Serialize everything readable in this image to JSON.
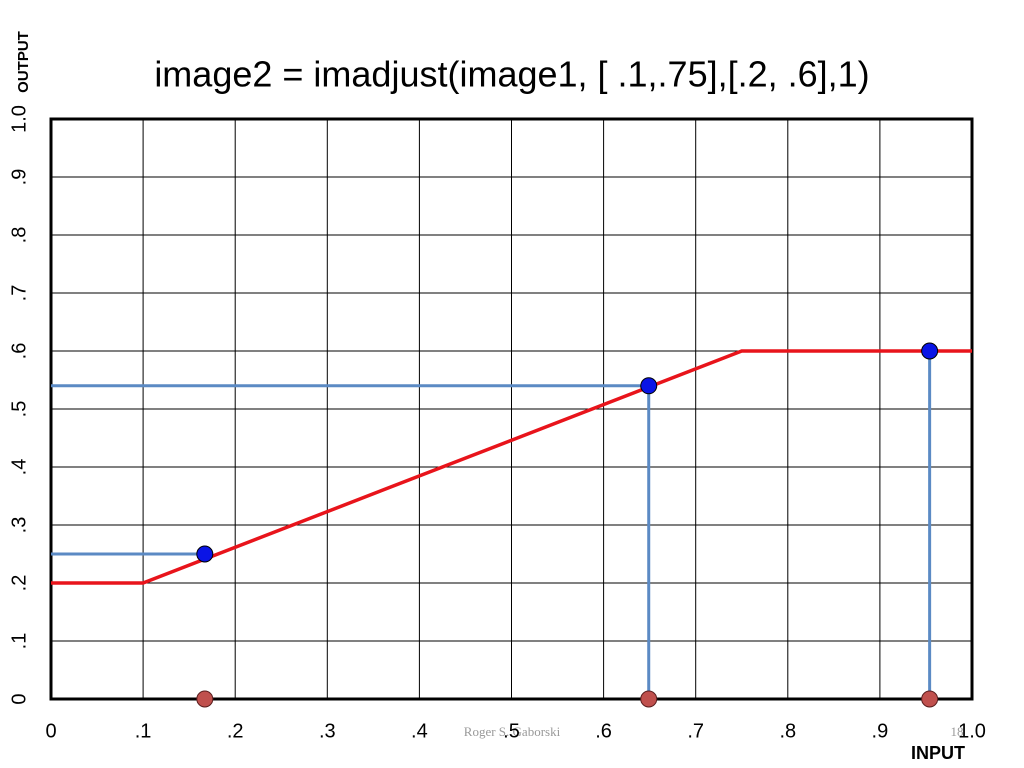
{
  "chart_data": {
    "type": "line",
    "title": "image2 = imadjust(image1, [ .1,.75],[.2, .6],1)",
    "x_label": "INPUT",
    "y_label": "OUTPUT",
    "x": [
      0,
      0.1,
      0.75,
      1
    ],
    "values": [
      0.2,
      0.2,
      0.6,
      0.6
    ],
    "color": "#e8141b",
    "points": {
      "x": [
        0.167,
        0.649,
        0.954
      ],
      "values": [
        0.25,
        0.54,
        0.6
      ],
      "color": "#0a14e6",
      "marker_color": "#c0504d",
      "guide_color": "#5b8ac4"
    },
    "xlim": [
      0,
      1
    ],
    "ylim": [
      0,
      1
    ],
    "xticks": [
      0,
      {
        "value": 0.1,
        "label": ".1"
      },
      {
        "value": 0.2,
        "label": ".2"
      },
      {
        "value": 0.3,
        "label": ".3"
      },
      {
        "value": 0.4,
        "label": ".4"
      },
      {
        "value": 0.5,
        "label": ".5"
      },
      {
        "value": 0.6,
        "label": ".6"
      },
      {
        "value": 0.7,
        "label": ".7"
      },
      {
        "value": 0.8,
        "label": ".8"
      },
      {
        "value": 0.9,
        "label": ".9"
      },
      {
        "value": 1,
        "label": "1.0"
      }
    ],
    "yticks": [
      0,
      {
        "value": 0.1,
        "label": ".1"
      },
      {
        "value": 0.2,
        "label": ".2"
      },
      {
        "value": 0.3,
        "label": ".3"
      },
      {
        "value": 0.4,
        "label": ".4"
      },
      {
        "value": 0.5,
        "label": ".5"
      },
      {
        "value": 0.6,
        "label": ".6"
      },
      {
        "value": 0.7,
        "label": ".7"
      },
      {
        "value": 0.8,
        "label": ".8"
      },
      {
        "value": 0.9,
        "label": ".9"
      },
      {
        "value": 1,
        "label": "1.0"
      }
    ],
    "grid": true
  },
  "footer": "Roger S. Gaborski",
  "page_number": "18"
}
